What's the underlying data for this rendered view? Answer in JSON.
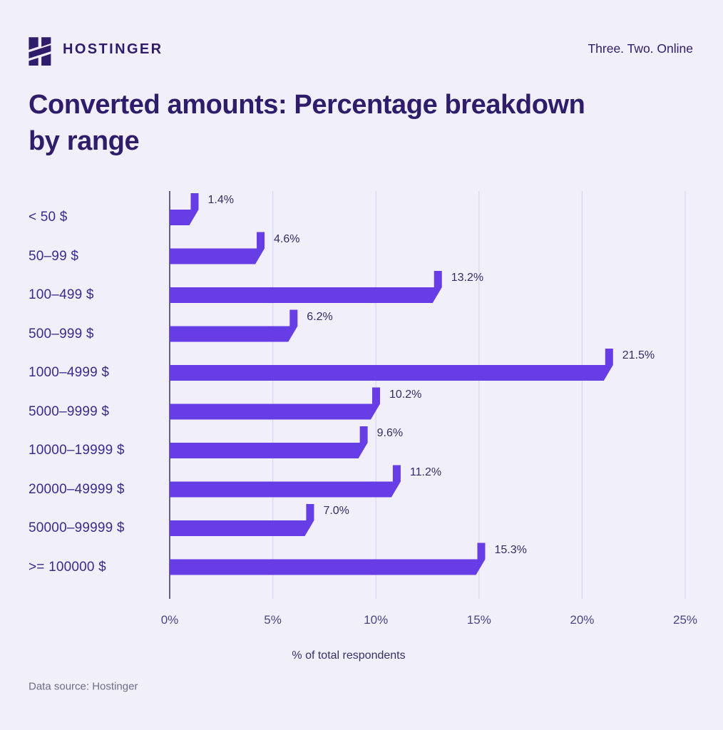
{
  "header": {
    "brand": "HOSTINGER",
    "tagline": "Three. Two. Online",
    "logo_icon": "hostinger-h-logo"
  },
  "title": {
    "line1": "Converted amounts: Percentage breakdown",
    "line2": "by range"
  },
  "footer": {
    "source": "Data source: Hostinger"
  },
  "chart_data": {
    "type": "bar",
    "orientation": "horizontal",
    "title": "Converted amounts: Percentage breakdown by range",
    "categories": [
      "< 50 $",
      "50–99 $",
      "100–499 $",
      "500–999 $",
      "1000–4999 $",
      "5000–9999 $",
      "10000–19999 $",
      "20000–49999 $",
      "50000–99999 $",
      ">= 100000 $"
    ],
    "values": [
      1.4,
      4.6,
      13.2,
      6.2,
      21.5,
      10.2,
      9.6,
      11.2,
      7.0,
      15.3
    ],
    "value_labels": [
      "1.4%",
      "4.6%",
      "13.2%",
      "6.2%",
      "21.5%",
      "10.2%",
      "9.6%",
      "11.2%",
      "7.0%",
      "15.3%"
    ],
    "xlabel": "% of total respondents",
    "ylabel": "",
    "xlim": [
      0,
      25
    ],
    "xticks": [
      0,
      5,
      10,
      15,
      20,
      25
    ],
    "xtick_labels": [
      "0%",
      "5%",
      "10%",
      "15%",
      "20%",
      "25%"
    ],
    "grid": true,
    "legend": false
  },
  "colors": {
    "background": "#f1f0fa",
    "bar": "#673de6",
    "title_text": "#2f1c6a",
    "category_label": "#3b2a8f",
    "value_label": "#342c63",
    "tick_label": "#4c4585",
    "gridline": "#d8d7f1",
    "axis_line": "#413c68",
    "source_text": "#6e6c8a"
  }
}
